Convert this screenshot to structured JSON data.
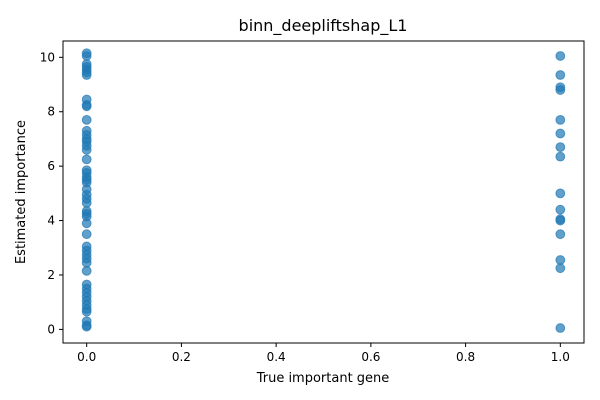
{
  "chart_data": {
    "type": "scatter",
    "title": "binn_deepliftshap_L1",
    "xlabel": "True important gene",
    "ylabel": "Estimated importance",
    "xlim": [
      -0.05,
      1.05
    ],
    "ylim": [
      -0.5,
      10.6
    ],
    "xticks": [
      {
        "value": 0.0,
        "label": "0.0"
      },
      {
        "value": 0.2,
        "label": "0.2"
      },
      {
        "value": 0.4,
        "label": "0.4"
      },
      {
        "value": 0.6,
        "label": "0.6"
      },
      {
        "value": 0.8,
        "label": "0.8"
      },
      {
        "value": 1.0,
        "label": "1.0"
      }
    ],
    "yticks": [
      {
        "value": 0,
        "label": "0"
      },
      {
        "value": 2,
        "label": "2"
      },
      {
        "value": 4,
        "label": "4"
      },
      {
        "value": 6,
        "label": "6"
      },
      {
        "value": 8,
        "label": "8"
      },
      {
        "value": 10,
        "label": "10"
      }
    ],
    "grid": false,
    "marker_color": "#1f77b4",
    "series": [
      {
        "points": [
          [
            0,
            10.15
          ],
          [
            0,
            10.05
          ],
          [
            0,
            9.75
          ],
          [
            0,
            9.65
          ],
          [
            0,
            9.55
          ],
          [
            0,
            9.45
          ],
          [
            0,
            9.35
          ],
          [
            0,
            8.45
          ],
          [
            0,
            8.25
          ],
          [
            0,
            8.2
          ],
          [
            0,
            7.7
          ],
          [
            0,
            7.3
          ],
          [
            0,
            7.15
          ],
          [
            0,
            7.0
          ],
          [
            0,
            6.9
          ],
          [
            0,
            6.75
          ],
          [
            0,
            6.6
          ],
          [
            0,
            6.25
          ],
          [
            0,
            5.85
          ],
          [
            0,
            5.75
          ],
          [
            0,
            5.6
          ],
          [
            0,
            5.5
          ],
          [
            0,
            5.4
          ],
          [
            0,
            5.15
          ],
          [
            0,
            4.95
          ],
          [
            0,
            4.8
          ],
          [
            0,
            4.65
          ],
          [
            0,
            4.35
          ],
          [
            0,
            4.25
          ],
          [
            0,
            4.15
          ],
          [
            0,
            3.9
          ],
          [
            0,
            3.5
          ],
          [
            0,
            3.05
          ],
          [
            0,
            2.9
          ],
          [
            0,
            2.75
          ],
          [
            0,
            2.6
          ],
          [
            0,
            2.45
          ],
          [
            0,
            2.15
          ],
          [
            0,
            1.65
          ],
          [
            0,
            1.5
          ],
          [
            0,
            1.35
          ],
          [
            0,
            1.2
          ],
          [
            0,
            1.05
          ],
          [
            0,
            0.9
          ],
          [
            0,
            0.75
          ],
          [
            0,
            0.65
          ],
          [
            0,
            0.3
          ],
          [
            0,
            0.15
          ],
          [
            0,
            0.1
          ],
          [
            1,
            10.05
          ],
          [
            1,
            9.35
          ],
          [
            1,
            8.9
          ],
          [
            1,
            8.8
          ],
          [
            1,
            7.7
          ],
          [
            1,
            7.2
          ],
          [
            1,
            6.7
          ],
          [
            1,
            6.35
          ],
          [
            1,
            5.0
          ],
          [
            1,
            4.4
          ],
          [
            1,
            4.05
          ],
          [
            1,
            4.0
          ],
          [
            1,
            3.5
          ],
          [
            1,
            2.55
          ],
          [
            1,
            2.25
          ],
          [
            1,
            0.05
          ]
        ]
      }
    ]
  }
}
